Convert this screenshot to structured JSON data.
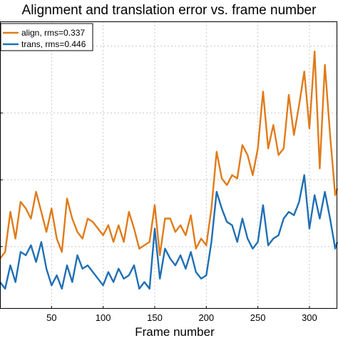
{
  "chart_data": {
    "type": "line",
    "title": "Alignment and translation error vs. frame number",
    "xlabel": "Frame number",
    "ylabel": "",
    "xlim": [
      0,
      327
    ],
    "ylim": [
      0,
      4.3
    ],
    "xticks": [
      50,
      100,
      150,
      200,
      250,
      300
    ],
    "xtick_labels": [
      "50",
      "100",
      "150",
      "200",
      "250",
      "300"
    ],
    "yticks": [
      0.93,
      1.93,
      2.93,
      3.93
    ],
    "grid": true,
    "legend_position": "top-left",
    "series": [
      {
        "name": "align, rms=0.337",
        "color": "#e07b1a",
        "x": [
          0,
          5,
          10,
          15,
          20,
          25,
          30,
          35,
          40,
          45,
          50,
          55,
          60,
          65,
          70,
          75,
          80,
          85,
          90,
          95,
          100,
          105,
          110,
          115,
          120,
          125,
          130,
          135,
          140,
          145,
          150,
          155,
          160,
          165,
          170,
          175,
          180,
          185,
          190,
          195,
          200,
          205,
          210,
          215,
          220,
          225,
          230,
          235,
          240,
          245,
          250,
          255,
          260,
          265,
          270,
          275,
          280,
          285,
          290,
          295,
          300,
          305,
          310,
          315,
          320,
          325,
          327
        ],
        "y": [
          0.75,
          0.85,
          1.45,
          1.05,
          1.6,
          1.5,
          1.35,
          1.75,
          1.45,
          1.15,
          1.5,
          1.05,
          0.85,
          1.65,
          1.35,
          1.15,
          1.05,
          1.35,
          1.3,
          1.2,
          1.1,
          1.25,
          1.0,
          1.25,
          1.0,
          1.45,
          1.2,
          0.9,
          0.95,
          1.0,
          1.55,
          0.8,
          1.35,
          1.35,
          1.15,
          1.25,
          1.1,
          1.4,
          0.9,
          1.05,
          0.95,
          1.5,
          2.35,
          1.95,
          1.85,
          2.0,
          1.95,
          2.45,
          2.3,
          2.0,
          2.4,
          3.25,
          2.4,
          2.75,
          2.3,
          2.4,
          3.2,
          2.6,
          3.05,
          3.55,
          2.7,
          3.85,
          2.1,
          3.65,
          2.6,
          1.7,
          1.8
        ]
      },
      {
        "name": "trans, rms=0.446",
        "color": "#1f6fb4",
        "x": [
          0,
          5,
          10,
          15,
          20,
          25,
          30,
          35,
          40,
          45,
          50,
          55,
          60,
          65,
          70,
          75,
          80,
          85,
          90,
          95,
          100,
          105,
          110,
          115,
          120,
          125,
          130,
          135,
          140,
          145,
          150,
          155,
          160,
          165,
          170,
          175,
          180,
          185,
          190,
          195,
          200,
          205,
          210,
          215,
          220,
          225,
          230,
          235,
          240,
          245,
          250,
          255,
          260,
          265,
          270,
          275,
          280,
          285,
          290,
          295,
          300,
          305,
          310,
          315,
          320,
          325,
          327
        ],
        "y": [
          0.4,
          0.3,
          0.65,
          0.4,
          0.85,
          0.8,
          0.95,
          0.7,
          1.0,
          0.6,
          0.35,
          0.5,
          0.3,
          0.65,
          0.4,
          0.8,
          0.6,
          0.65,
          0.55,
          0.45,
          0.35,
          0.55,
          0.4,
          0.6,
          0.45,
          0.5,
          0.65,
          0.3,
          0.4,
          0.3,
          1.2,
          0.45,
          0.9,
          0.75,
          0.65,
          0.8,
          0.6,
          0.85,
          0.55,
          0.45,
          0.5,
          1.0,
          1.75,
          1.5,
          1.3,
          1.25,
          1.0,
          1.35,
          1.05,
          0.9,
          1.0,
          1.55,
          0.95,
          1.05,
          1.1,
          1.35,
          1.45,
          1.4,
          1.6,
          2.0,
          1.2,
          1.7,
          1.35,
          1.75,
          1.35,
          0.9,
          1.0
        ]
      }
    ]
  }
}
